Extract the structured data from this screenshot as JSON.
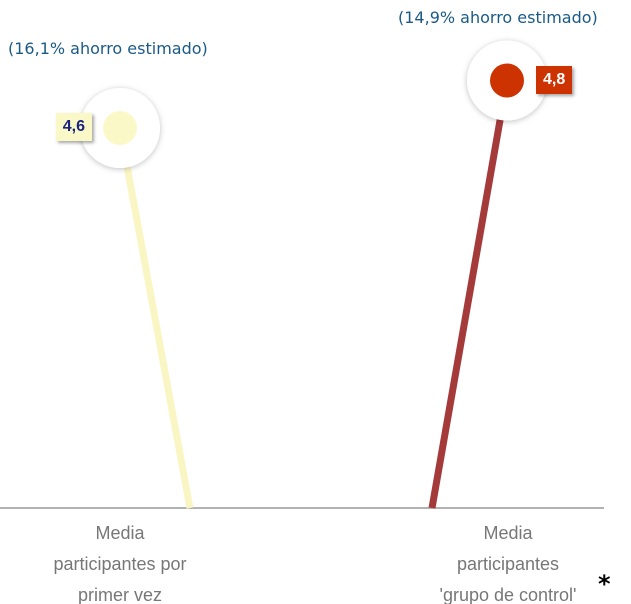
{
  "chart_data": {
    "type": "lollipop",
    "categories": [
      "Media\nparticipantes por\nprimer vez",
      "Media\nparticipantes\n'grupo de control'"
    ],
    "values": [
      4.6,
      4.8
    ],
    "value_labels": [
      "4,6",
      "4,8"
    ],
    "colors": [
      "#fbf8c8",
      "#cc3300"
    ],
    "stick_colors": [
      "#faf6c4",
      "#a53a3a"
    ],
    "label_colors": [
      "#1a237e",
      "#ffffff"
    ],
    "annotations": [
      "(16,1% ahorro estimado)",
      "(14,9% ahorro estimado)"
    ],
    "footnote_mark": "*",
    "ylim": [
      3,
      5
    ]
  }
}
